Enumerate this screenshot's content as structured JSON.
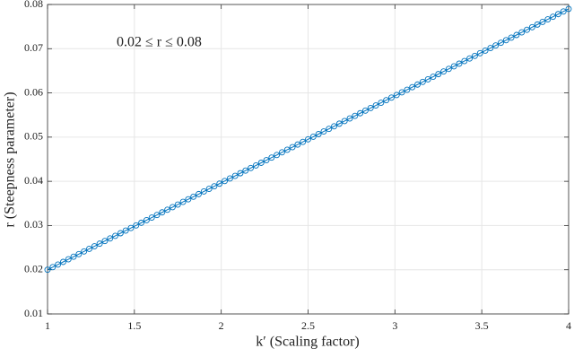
{
  "chart_data": {
    "type": "line",
    "annotation": "0.02 ≤ r ≤ 0.08",
    "x_label": "k′ (Scaling factor)",
    "y_label": "r (Steepness parameter)",
    "xlim": [
      1,
      4
    ],
    "ylim": [
      0.01,
      0.08
    ],
    "xticks": [
      1,
      1.5,
      2,
      2.5,
      3,
      3.5,
      4
    ],
    "yticks": [
      0.01,
      0.02,
      0.03,
      0.04,
      0.05,
      0.06,
      0.07,
      0.08
    ],
    "grid": true,
    "x": [
      1,
      1.03,
      1.06,
      1.09,
      1.12,
      1.15,
      1.18,
      1.21,
      1.24,
      1.27,
      1.3,
      1.33,
      1.36,
      1.39,
      1.42,
      1.45,
      1.48,
      1.51,
      1.54,
      1.57,
      1.6,
      1.63,
      1.66,
      1.69,
      1.72,
      1.75,
      1.78,
      1.81,
      1.84,
      1.87,
      1.9,
      1.93,
      1.96,
      1.99,
      2.02,
      2.05,
      2.08,
      2.11,
      2.14,
      2.17,
      2.2,
      2.23,
      2.26,
      2.29,
      2.32,
      2.35,
      2.38,
      2.41,
      2.44,
      2.47,
      2.5,
      2.53,
      2.56,
      2.59,
      2.62,
      2.65,
      2.68,
      2.71,
      2.74,
      2.77,
      2.8,
      2.83,
      2.86,
      2.89,
      2.92,
      2.95,
      2.98,
      3.01,
      3.04,
      3.07,
      3.1,
      3.13,
      3.16,
      3.19,
      3.22,
      3.25,
      3.28,
      3.31,
      3.34,
      3.37,
      3.4,
      3.43,
      3.46,
      3.49,
      3.52,
      3.55,
      3.58,
      3.61,
      3.64,
      3.67,
      3.7,
      3.73,
      3.76,
      3.79,
      3.82,
      3.85,
      3.88,
      3.91,
      3.94,
      3.97,
      4
    ],
    "series": [
      {
        "color": "#0072BD",
        "values": [
          0.02,
          0.02059,
          0.02118,
          0.02177,
          0.02236,
          0.02295,
          0.02354,
          0.02413,
          0.02472,
          0.02531,
          0.0259,
          0.02649,
          0.02708,
          0.02767,
          0.02826,
          0.02885,
          0.02944,
          0.03003,
          0.03062,
          0.03121,
          0.0318,
          0.03239,
          0.03298,
          0.03357,
          0.03416,
          0.03475,
          0.03534,
          0.03593,
          0.03652,
          0.03711,
          0.0377,
          0.03829,
          0.03888,
          0.03947,
          0.04006,
          0.04065,
          0.04124,
          0.04183,
          0.04242,
          0.04301,
          0.0436,
          0.04419,
          0.04478,
          0.04537,
          0.04596,
          0.04655,
          0.04714,
          0.04773,
          0.04832,
          0.04891,
          0.0495,
          0.05009,
          0.05068,
          0.05127,
          0.05186,
          0.05245,
          0.05304,
          0.05363,
          0.05422,
          0.05481,
          0.0554,
          0.05599,
          0.05658,
          0.05717,
          0.05776,
          0.05835,
          0.05894,
          0.05953,
          0.06012,
          0.06071,
          0.0613,
          0.06189,
          0.06248,
          0.06307,
          0.06366,
          0.06425,
          0.06484,
          0.06543,
          0.06602,
          0.06661,
          0.0672,
          0.06779,
          0.06838,
          0.06897,
          0.06956,
          0.07015,
          0.07074,
          0.07133,
          0.07192,
          0.07251,
          0.0731,
          0.07369,
          0.07428,
          0.07487,
          0.07546,
          0.07605,
          0.07664,
          0.07723,
          0.07782,
          0.07841,
          0.079
        ]
      }
    ]
  }
}
